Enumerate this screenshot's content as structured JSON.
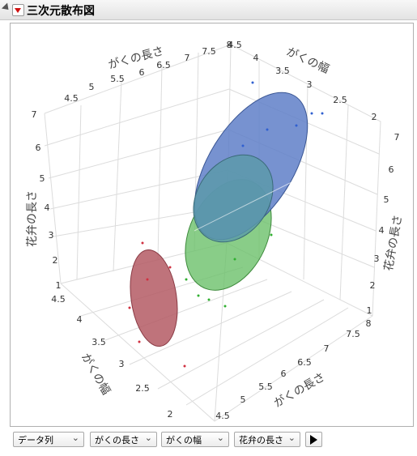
{
  "header": {
    "title": "三次元散布図"
  },
  "axes": {
    "top_left": {
      "label": "がくの長さ",
      "ticks": [
        "4.5",
        "5",
        "5.5",
        "6",
        "6.5",
        "7",
        "7.5",
        "8"
      ]
    },
    "top_right": {
      "label": "がくの幅",
      "ticks": [
        "4.5",
        "4",
        "3.5",
        "3",
        "2.5",
        "2"
      ]
    },
    "left": {
      "label": "花弁の長さ",
      "ticks": [
        "7",
        "6",
        "5",
        "4",
        "3",
        "2",
        "1"
      ]
    },
    "right": {
      "label": "花弁の長さ",
      "ticks": [
        "7",
        "6",
        "5",
        "4",
        "3",
        "2",
        "1"
      ]
    },
    "bottom_left": {
      "label": "がくの幅",
      "ticks": [
        "4.5",
        "4",
        "3.5",
        "3",
        "2.5",
        "2"
      ]
    },
    "bottom_right": {
      "label": "がくの長さ",
      "ticks": [
        "8",
        "7.5",
        "7",
        "6.5",
        "6",
        "5.5",
        "5",
        "4.5"
      ]
    }
  },
  "controls": [
    "データ列",
    "がくの長さ",
    "がくの幅",
    "花弁の長さ"
  ]
}
